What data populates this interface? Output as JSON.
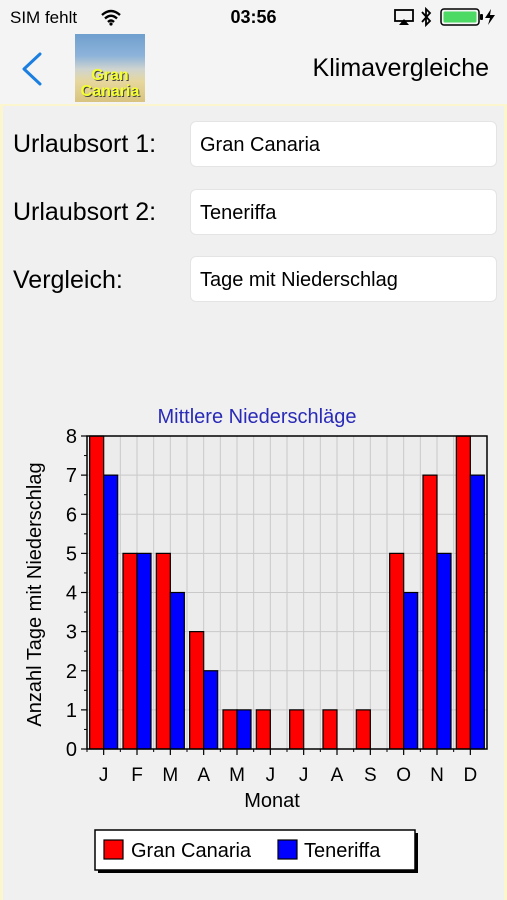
{
  "status_bar": {
    "carrier": "SIM fehlt",
    "time": "03:56"
  },
  "nav": {
    "title": "Klimavergleiche",
    "thumbnail_text_line1": "Gran",
    "thumbnail_text_line2": "Canaria"
  },
  "form": {
    "location1_label": "Urlaubsort 1:",
    "location1_value": "Gran Canaria",
    "location2_label": "Urlaubsort 2:",
    "location2_value": "Teneriffa",
    "comparison_label": "Vergleich:",
    "comparison_value": "Tage mit Niederschlag"
  },
  "colors": {
    "accent": "#1a7fe0",
    "series1": "#ff0000",
    "series2": "#0000ff",
    "title": "#2a2ab8"
  },
  "chart_data": {
    "type": "bar",
    "title": "Mittlere Niederschläge",
    "xlabel": "Monat",
    "ylabel": "Anzahl Tage mit Niederschlag",
    "categories": [
      "J",
      "F",
      "M",
      "A",
      "M",
      "J",
      "J",
      "A",
      "S",
      "O",
      "N",
      "D"
    ],
    "ylim": [
      0,
      8
    ],
    "yticks": [
      0,
      1,
      2,
      3,
      4,
      5,
      6,
      7,
      8
    ],
    "grid": true,
    "legend_position": "bottom",
    "series": [
      {
        "name": "Gran Canaria",
        "color": "#ff0000",
        "values": [
          8,
          5,
          5,
          3,
          1,
          1,
          1,
          1,
          1,
          5,
          7,
          8
        ]
      },
      {
        "name": "Teneriffa",
        "color": "#0000ff",
        "values": [
          7,
          5,
          4,
          2,
          1,
          0,
          0,
          0,
          0,
          4,
          5,
          7
        ]
      }
    ]
  }
}
